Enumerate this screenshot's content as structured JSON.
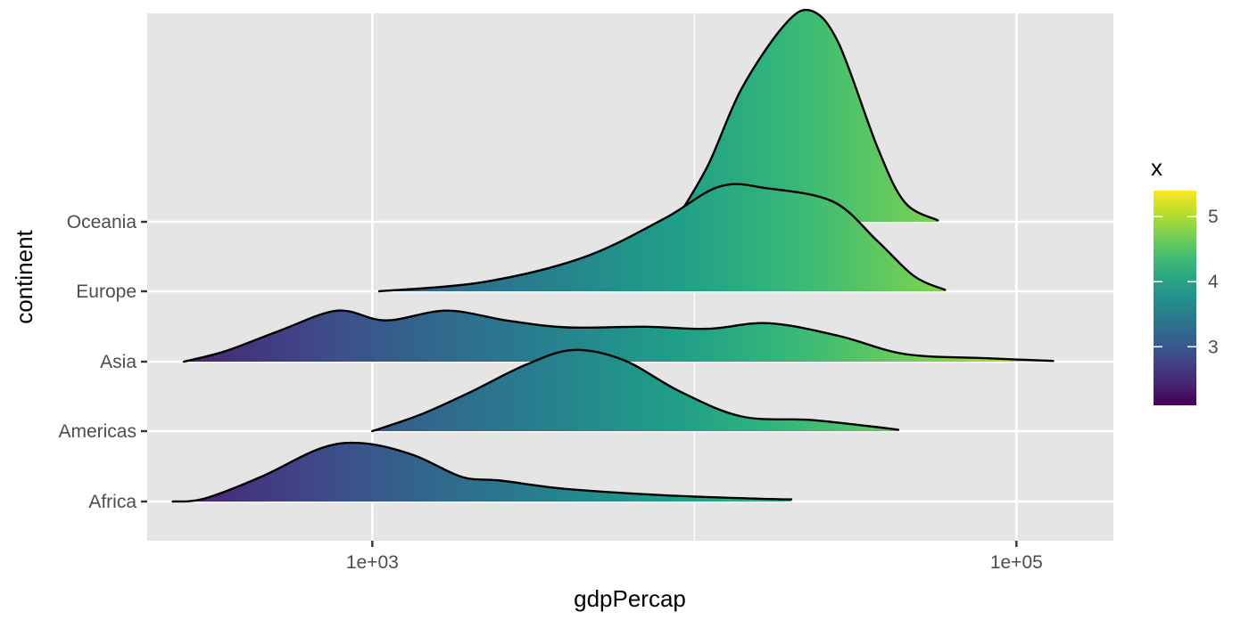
{
  "chart_data": {
    "type": "ridgeline",
    "xlabel": "gdpPercap",
    "ylabel": "continent",
    "x_scale": "log10",
    "xlim": [
      200,
      200000
    ],
    "x_ticks": [
      {
        "value": 1000,
        "label": "1e+03"
      },
      {
        "value": 100000,
        "label": "1e+05"
      }
    ],
    "x_minor_gridlines": [
      100,
      10000
    ],
    "categories": [
      "Africa",
      "Americas",
      "Asia",
      "Europe",
      "Oceania"
    ],
    "series": [
      {
        "name": "Africa",
        "points": [
          [
            240,
            0
          ],
          [
            300,
            0.04
          ],
          [
            450,
            0.35
          ],
          [
            700,
            0.77
          ],
          [
            950,
            0.83
          ],
          [
            1350,
            0.66
          ],
          [
            1900,
            0.35
          ],
          [
            2500,
            0.3
          ],
          [
            4000,
            0.18
          ],
          [
            8000,
            0.09
          ],
          [
            16000,
            0.04
          ],
          [
            20000,
            0.03
          ]
        ]
      },
      {
        "name": "Americas",
        "points": [
          [
            1000,
            0
          ],
          [
            1400,
            0.23
          ],
          [
            2000,
            0.55
          ],
          [
            3000,
            0.95
          ],
          [
            4200,
            1.16
          ],
          [
            6000,
            1.02
          ],
          [
            9000,
            0.57
          ],
          [
            14000,
            0.21
          ],
          [
            23000,
            0.16
          ],
          [
            35000,
            0.07
          ],
          [
            43000,
            0.02
          ]
        ]
      },
      {
        "name": "Asia",
        "points": [
          [
            260,
            0
          ],
          [
            350,
            0.15
          ],
          [
            520,
            0.45
          ],
          [
            780,
            0.73
          ],
          [
            1100,
            0.59
          ],
          [
            1700,
            0.73
          ],
          [
            2600,
            0.59
          ],
          [
            4000,
            0.49
          ],
          [
            7000,
            0.5
          ],
          [
            11000,
            0.47
          ],
          [
            17000,
            0.55
          ],
          [
            28000,
            0.37
          ],
          [
            45000,
            0.11
          ],
          [
            80000,
            0.05
          ],
          [
            130000,
            0.01
          ]
        ]
      },
      {
        "name": "Europe",
        "points": [
          [
            1050,
            0
          ],
          [
            2200,
            0.13
          ],
          [
            4500,
            0.48
          ],
          [
            8000,
            1.03
          ],
          [
            12000,
            1.5
          ],
          [
            17000,
            1.47
          ],
          [
            27000,
            1.28
          ],
          [
            37000,
            0.72
          ],
          [
            48000,
            0.22
          ],
          [
            60000,
            0.02
          ]
        ]
      },
      {
        "name": "Oceania",
        "points": [
          [
            8700,
            0
          ],
          [
            11000,
            0.8
          ],
          [
            14000,
            1.9
          ],
          [
            19000,
            2.81
          ],
          [
            23000,
            3.02
          ],
          [
            28000,
            2.56
          ],
          [
            37000,
            1.07
          ],
          [
            45000,
            0.28
          ],
          [
            57000,
            0.02
          ]
        ]
      }
    ],
    "fill_colormap": "viridis",
    "legend": {
      "title": "x",
      "position": "right",
      "ticks": [
        3,
        4,
        5
      ],
      "range": [
        2.1,
        5.4
      ]
    },
    "grid": true,
    "panel_background": "#e5e5e5",
    "gridline_color": "#ffffff",
    "outline_color": "#000000"
  }
}
